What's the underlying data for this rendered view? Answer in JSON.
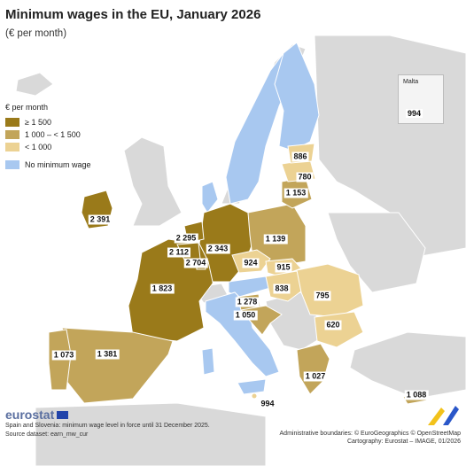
{
  "title": "Minimum wages in the EU, January 2026",
  "subtitle": "(€ per month)",
  "legend": {
    "title": "€ per month",
    "items": [
      {
        "label": "≥ 1 500",
        "color": "#9a7a1a"
      },
      {
        "label": "1 000 – < 1 500",
        "color": "#c2a55a"
      },
      {
        "label": "< 1 000",
        "color": "#ecd293"
      }
    ],
    "no_wage": {
      "label": "No minimum wage",
      "color": "#a8c8f0"
    }
  },
  "colors": {
    "non_eu": "#d9d9d9",
    "sea": "#ffffff"
  },
  "values": {
    "ireland": "2 391",
    "netherlands": "2 295",
    "belgium": "2 112",
    "luxembourg": "2 704",
    "germany": "2 343",
    "france": "1 823",
    "poland": "1 139",
    "czechia": "924",
    "slovakia": "915",
    "hungary": "838",
    "romania": "795",
    "bulgaria": "620",
    "slovenia": "1 278",
    "croatia": "1 050",
    "portugal": "1 073",
    "spain": "1 381",
    "greece": "1 027",
    "cyprus": "1 088",
    "malta_main": "994",
    "lithuania": "1 153",
    "latvia": "780",
    "estonia": "886"
  },
  "inset": {
    "name": "Malta",
    "value": "994"
  },
  "footer": {
    "logo": "eurostat",
    "note": "Spain and Slovenia: minimum wage level in force until 31 December 2025.",
    "source": "Source dataset: earn_mw_cur",
    "admin": "Administrative boundaries: © EuroGeographics © OpenStreetMap",
    "cartography": "Cartography: Eurostat – IMAGE, 01/2026"
  }
}
